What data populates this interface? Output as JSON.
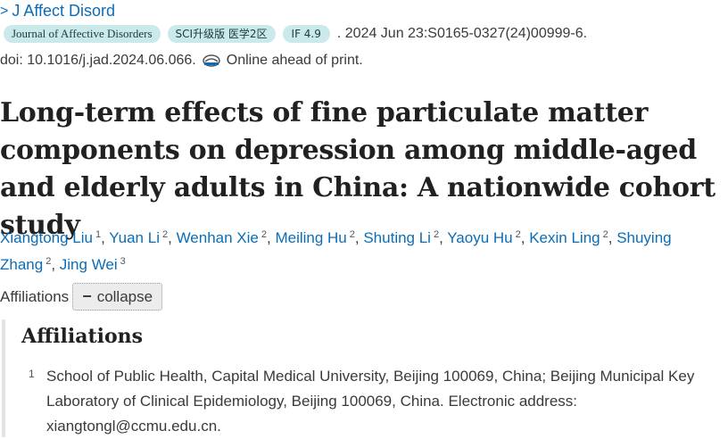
{
  "journal": {
    "label": "J Affect Disord"
  },
  "badges": {
    "journal_full": "Journal of Affective Disorders",
    "sci": "SCI升级版 医学2区",
    "impact_factor": "IF 4.9"
  },
  "citation": {
    "date_pages": ". 2024 Jun 23:S0165-0327(24)00999-6.",
    "doi": "doi: 10.1016/j.jad.2024.06.066.",
    "ahead_of_print": "Online ahead of print."
  },
  "article": {
    "title": "Long-term effects of fine particulate matter components on depression among middle-aged and elderly adults in China: A nationwide cohort study"
  },
  "authors": [
    {
      "name": "Xiangtong Liu",
      "aff": "1"
    },
    {
      "name": "Yuan Li",
      "aff": "2"
    },
    {
      "name": "Wenhan Xie",
      "aff": "2"
    },
    {
      "name": "Meiling Hu",
      "aff": "2"
    },
    {
      "name": "Shuting Li",
      "aff": "2"
    },
    {
      "name": "Yaoyu Hu",
      "aff": "2"
    },
    {
      "name": "Kexin Ling",
      "aff": "2"
    },
    {
      "name": "Shuying Zhang",
      "aff": "2"
    },
    {
      "name": "Jing Wei",
      "aff": "3"
    }
  ],
  "affiliations": {
    "toggle_label": "Affiliations",
    "collapse_symbol": "−",
    "collapse_label": "collapse",
    "heading": "Affiliations",
    "items": [
      {
        "num": "1",
        "text": "School of Public Health, Capital Medical University, Beijing 100069, China; Beijing Municipal Key Laboratory of Clinical Epidemiology, Beijing 100069, China. Electronic address: xiangtongl@ccmu.edu.cn."
      }
    ]
  },
  "colors": {
    "link": "#0b6db7",
    "badge_bg": "#c9e9ea",
    "text": "#212121"
  },
  "icons": {
    "journal": "chevron-right-icon",
    "ahead": "online-ahead-icon"
  }
}
